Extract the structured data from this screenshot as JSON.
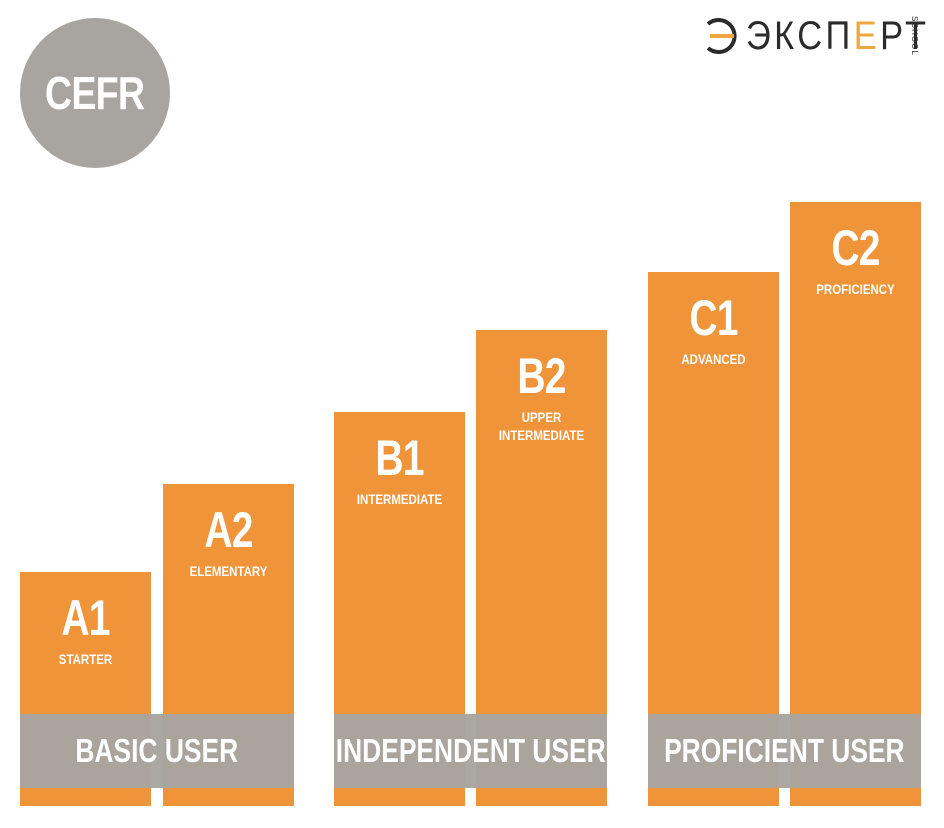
{
  "badge": {
    "label": "CEFR"
  },
  "logo": {
    "word_dark": "ЭКСП",
    "word_accent": "Е",
    "word_rest": "РТ",
    "school": "SCHOOL"
  },
  "levels": [
    {
      "code": "A1",
      "desc": "STARTER"
    },
    {
      "code": "A2",
      "desc": "ELEMENTARY"
    },
    {
      "code": "B1",
      "desc": "INTERMEDIATE"
    },
    {
      "code": "B2",
      "desc": "UPPER\nINTERMEDIATE"
    },
    {
      "code": "C1",
      "desc": "ADVANCED"
    },
    {
      "code": "C2",
      "desc": "PROFICIENCY"
    }
  ],
  "groups": [
    {
      "label": "BASIC USER"
    },
    {
      "label": "INDEPENDENT USER"
    },
    {
      "label": "PROFICIENT USER"
    }
  ],
  "colors": {
    "bar": "#f0943a",
    "band": "#a8a49f",
    "badge": "#a8a49f",
    "logo_accent": "#f0a640"
  }
}
